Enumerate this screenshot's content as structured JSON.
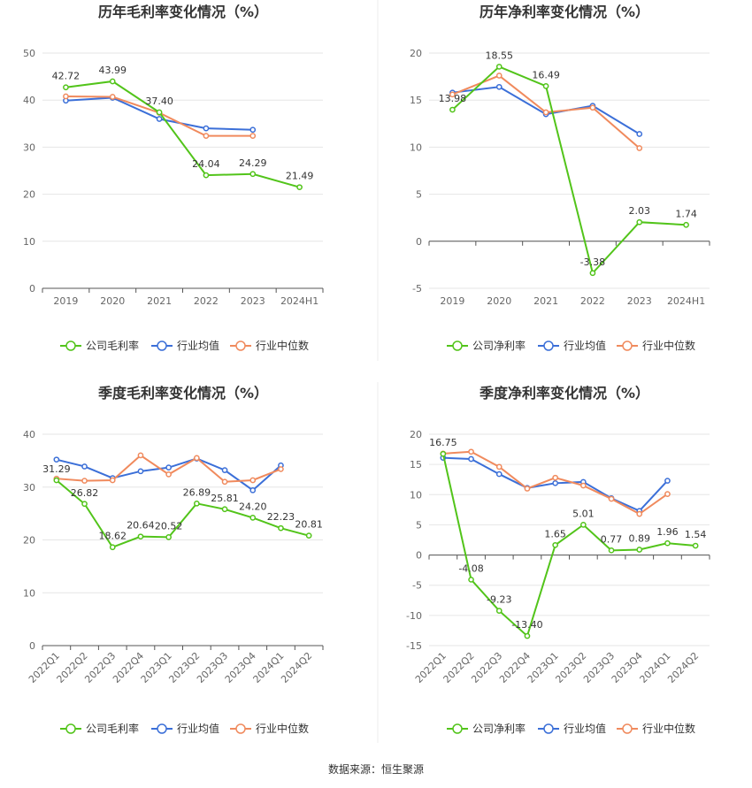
{
  "colors": {
    "company": "#52c41a",
    "industry_avg": "#3b6fd8",
    "industry_median": "#f08a5d"
  },
  "legend": {
    "gross_company": "公司毛利率",
    "net_company": "公司净利率",
    "industry_avg": "行业均值",
    "industry_median": "行业中位数"
  },
  "source": "数据来源：恒生聚源",
  "chart_data": [
    {
      "type": "line",
      "title": "历年毛利率变化情况（%）",
      "categories": [
        "2019",
        "2020",
        "2021",
        "2022",
        "2023",
        "2024H1"
      ],
      "ylim": [
        0,
        50
      ],
      "yticks": [
        0,
        10,
        20,
        30,
        40,
        50
      ],
      "grid": true,
      "legend_position": "bottom",
      "series": [
        {
          "name": "公司毛利率",
          "values": [
            42.72,
            43.99,
            37.4,
            24.04,
            24.29,
            21.49
          ],
          "labels": true
        },
        {
          "name": "行业均值",
          "values": [
            39.9,
            40.5,
            36.0,
            34.0,
            33.7,
            null
          ]
        },
        {
          "name": "行业中位数",
          "values": [
            40.8,
            40.7,
            37.3,
            32.4,
            32.4,
            null
          ]
        }
      ]
    },
    {
      "type": "line",
      "title": "历年净利率变化情况（%）",
      "categories": [
        "2019",
        "2020",
        "2021",
        "2022",
        "2023",
        "2024H1"
      ],
      "ylim": [
        -5,
        20
      ],
      "yticks": [
        -5,
        0,
        5,
        10,
        15,
        20
      ],
      "grid": true,
      "legend_position": "bottom",
      "series": [
        {
          "name": "公司净利率",
          "values": [
            13.98,
            18.55,
            16.49,
            -3.38,
            2.03,
            1.74
          ],
          "labels": true
        },
        {
          "name": "行业均值",
          "values": [
            15.8,
            16.4,
            13.5,
            14.4,
            11.4,
            null
          ]
        },
        {
          "name": "行业中位数",
          "values": [
            15.6,
            17.6,
            13.7,
            14.2,
            9.9,
            null
          ]
        }
      ]
    },
    {
      "type": "line",
      "title": "季度毛利率变化情况（%）",
      "categories": [
        "2022Q1",
        "2022Q2",
        "2022Q3",
        "2022Q4",
        "2023Q1",
        "2023Q2",
        "2023Q3",
        "2023Q4",
        "2024Q1",
        "2024Q2"
      ],
      "ylim": [
        0,
        40
      ],
      "yticks": [
        0,
        10,
        20,
        30,
        40
      ],
      "grid": true,
      "legend_position": "bottom",
      "series": [
        {
          "name": "公司毛利率",
          "values": [
            31.29,
            26.82,
            18.62,
            20.64,
            20.52,
            26.89,
            25.81,
            24.2,
            22.23,
            20.81
          ],
          "labels": true
        },
        {
          "name": "行业均值",
          "values": [
            35.2,
            33.9,
            31.7,
            33.0,
            33.7,
            35.4,
            33.2,
            29.4,
            34.1,
            null
          ]
        },
        {
          "name": "行业中位数",
          "values": [
            31.6,
            31.2,
            31.3,
            36.0,
            32.4,
            35.5,
            31.0,
            31.3,
            33.4,
            null
          ]
        }
      ]
    },
    {
      "type": "line",
      "title": "季度净利率变化情况（%）",
      "categories": [
        "2022Q1",
        "2022Q2",
        "2022Q3",
        "2022Q4",
        "2023Q1",
        "2023Q2",
        "2023Q3",
        "2023Q4",
        "2024Q1",
        "2024Q2"
      ],
      "ylim": [
        -15,
        20
      ],
      "yticks": [
        -15,
        -10,
        -5,
        0,
        5,
        10,
        15,
        20
      ],
      "grid": true,
      "legend_position": "bottom",
      "series": [
        {
          "name": "公司净利率",
          "values": [
            16.75,
            -4.08,
            -9.23,
            -13.4,
            1.65,
            5.01,
            0.77,
            0.89,
            1.96,
            1.54
          ],
          "labels": true
        },
        {
          "name": "行业均值",
          "values": [
            16.1,
            15.9,
            13.4,
            11.1,
            11.9,
            12.1,
            9.4,
            7.3,
            12.3,
            null
          ]
        },
        {
          "name": "行业中位数",
          "values": [
            16.8,
            17.1,
            14.6,
            11.0,
            12.8,
            11.5,
            9.3,
            6.8,
            10.1,
            null
          ]
        }
      ]
    }
  ]
}
